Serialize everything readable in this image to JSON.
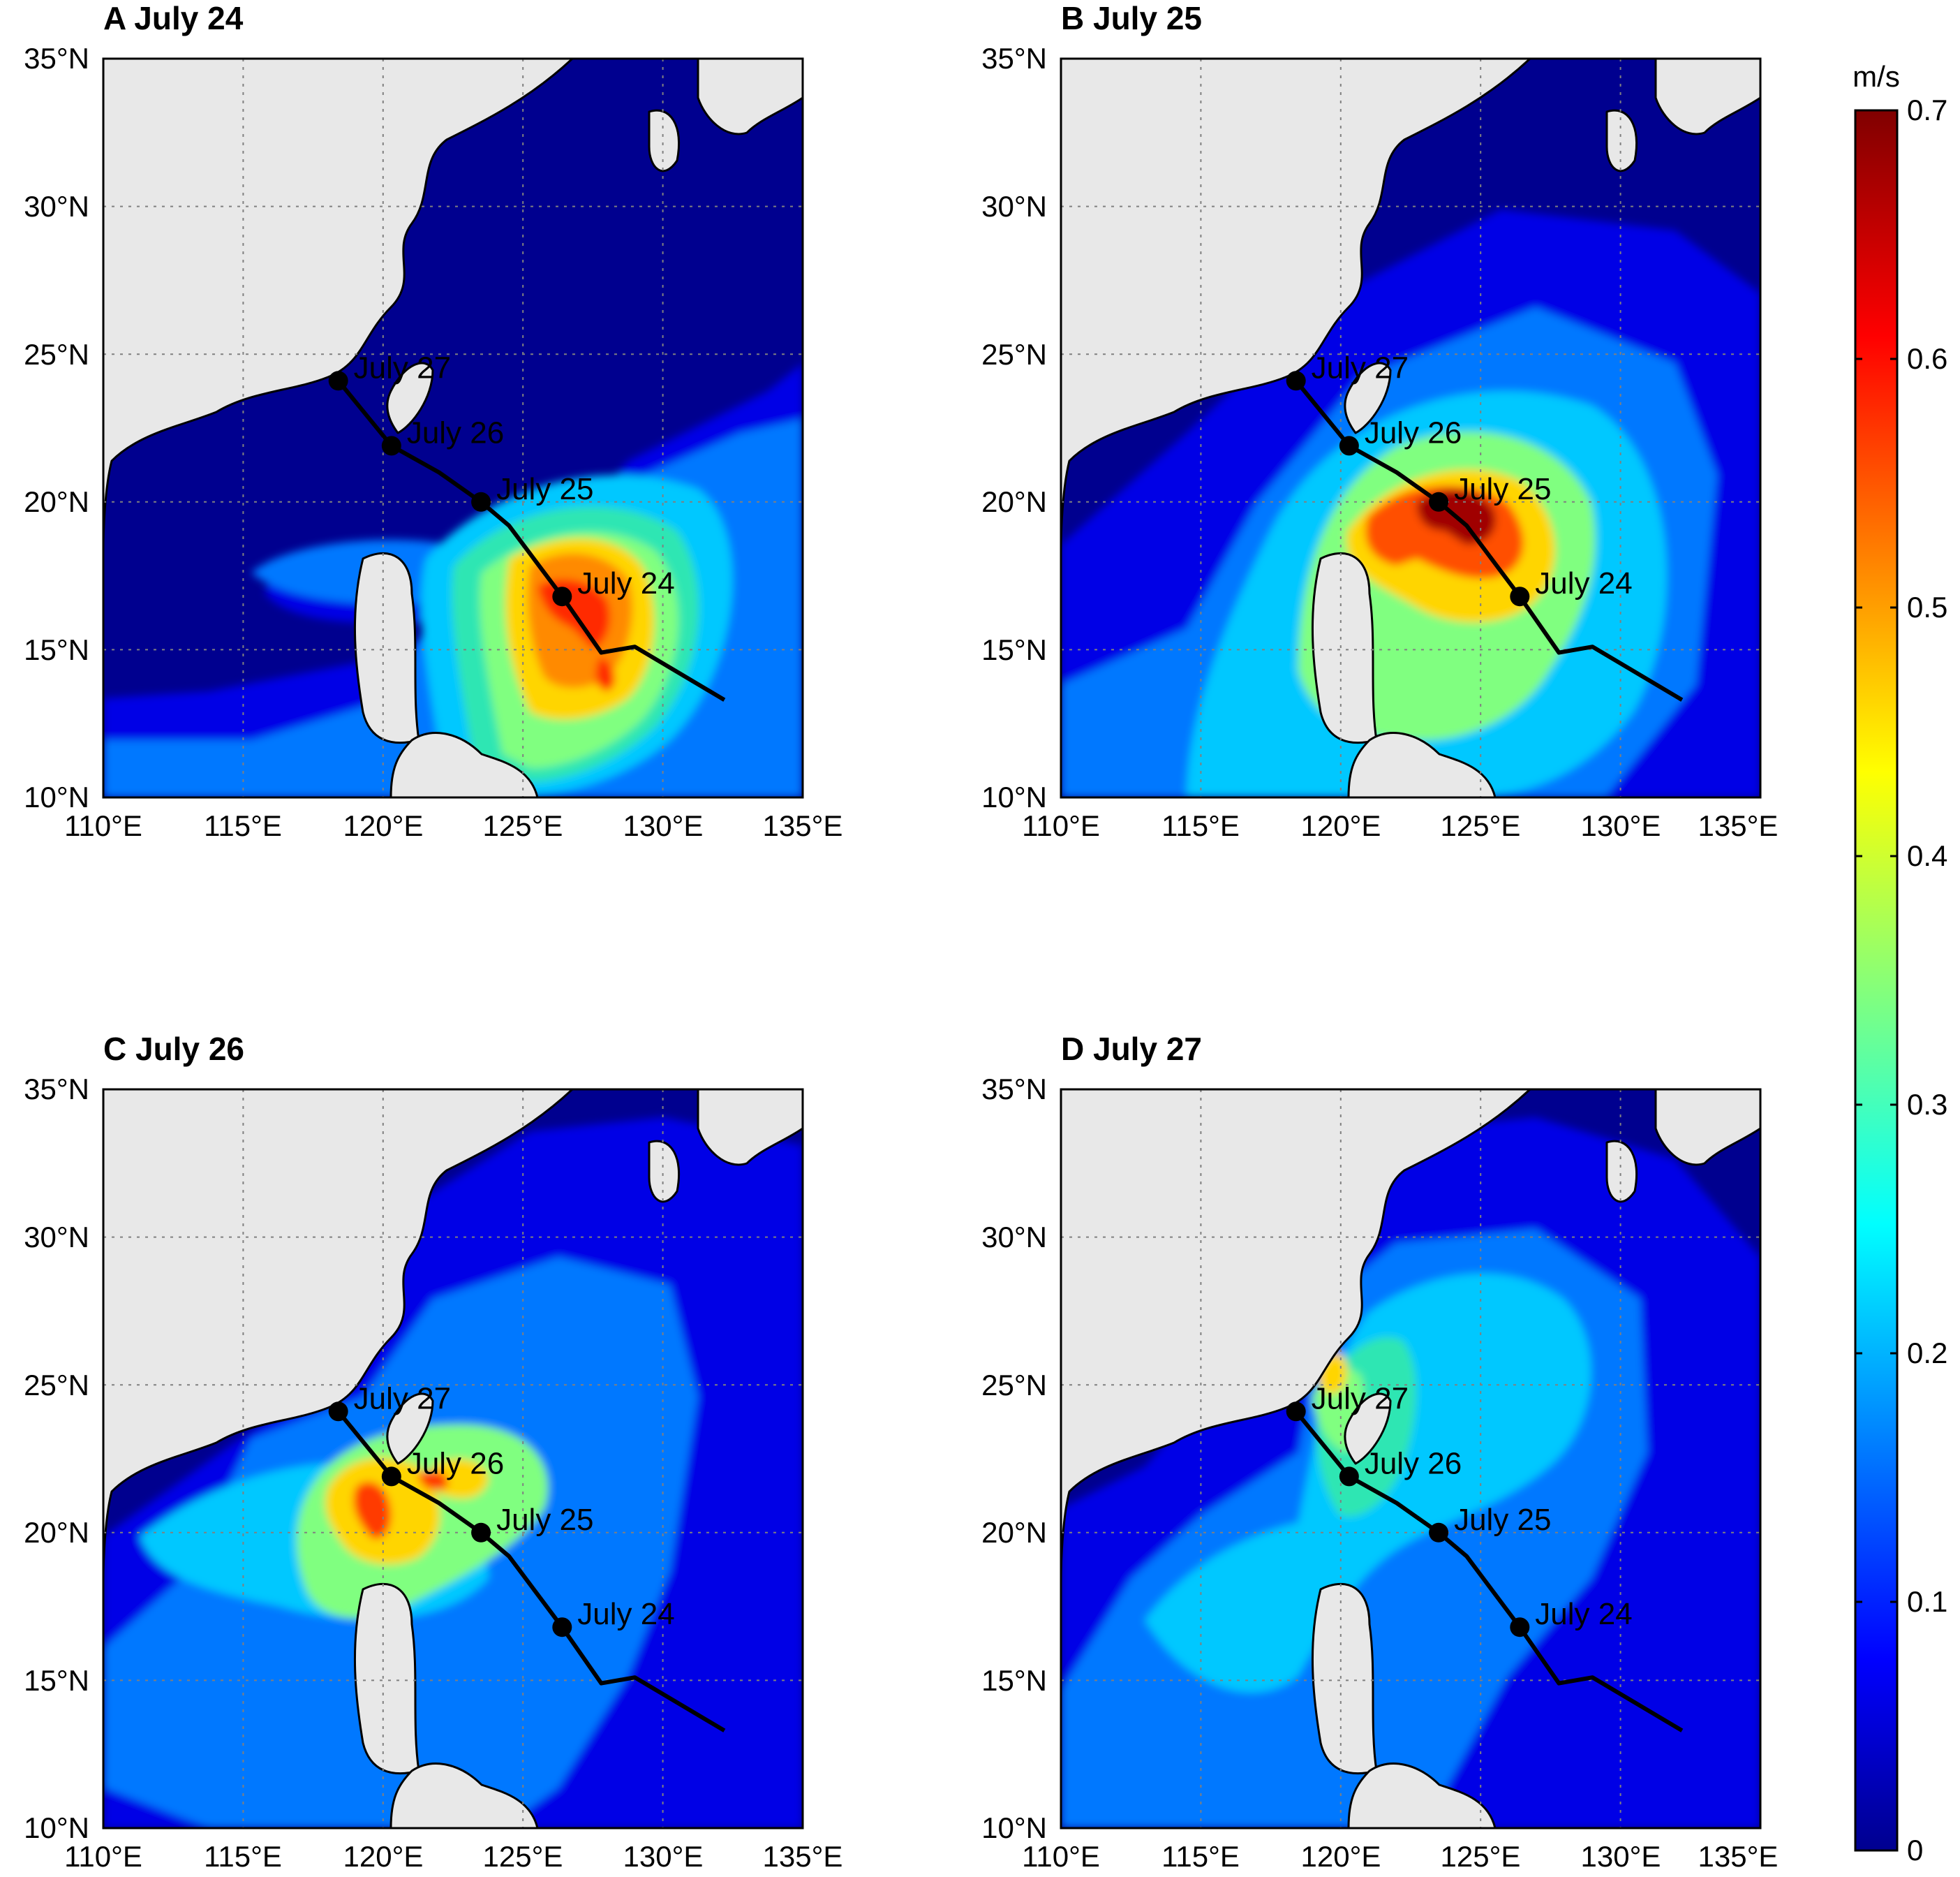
{
  "figure": {
    "colorbar": {
      "unit": "m/s",
      "ticks": [
        "0",
        "0.1",
        "0.2",
        "0.3",
        "0.4",
        "0.5",
        "0.6",
        "0.7"
      ],
      "range": [
        0,
        0.7
      ],
      "colormap": "jet"
    },
    "axes": {
      "lon_ticks": [
        "110°E",
        "115°E",
        "120°E",
        "125°E",
        "130°E",
        "135°E"
      ],
      "lat_ticks": [
        "10°N",
        "15°N",
        "20°N",
        "25°N",
        "30°N",
        "35°N"
      ],
      "lon_range": [
        110,
        135
      ],
      "lat_range": [
        10,
        35
      ]
    },
    "colors": {
      "land": "#e8e8e8",
      "ocean_low": "#00008f",
      "track": "#000000"
    }
  },
  "panels": [
    {
      "title": "A July 24",
      "peak_m_s": 0.62,
      "center": [
        126.5,
        17
      ]
    },
    {
      "title": "B July 25",
      "peak_m_s": 0.7,
      "center": [
        124.5,
        19.7
      ]
    },
    {
      "title": "C July 26",
      "peak_m_s": 0.6,
      "center": [
        120,
        21.3
      ]
    },
    {
      "title": "D July 27",
      "peak_m_s": 0.45,
      "center": [
        121.5,
        24.5
      ]
    }
  ],
  "typhoon_track": {
    "points": [
      [
        132.2,
        13.3
      ],
      [
        129,
        15.1
      ],
      [
        127.8,
        14.9
      ],
      [
        126.4,
        16.8
      ],
      [
        124.5,
        19.2
      ],
      [
        123.5,
        20.0
      ],
      [
        122,
        21.0
      ],
      [
        120.3,
        21.9
      ],
      [
        118.4,
        24.1
      ]
    ],
    "markers": [
      {
        "label": "July 24",
        "lon": 126.4,
        "lat": 16.8
      },
      {
        "label": "July 25",
        "lon": 123.5,
        "lat": 20.0
      },
      {
        "label": "July 26",
        "lon": 120.3,
        "lat": 21.9
      },
      {
        "label": "July 27",
        "lon": 118.4,
        "lat": 24.1
      }
    ]
  }
}
